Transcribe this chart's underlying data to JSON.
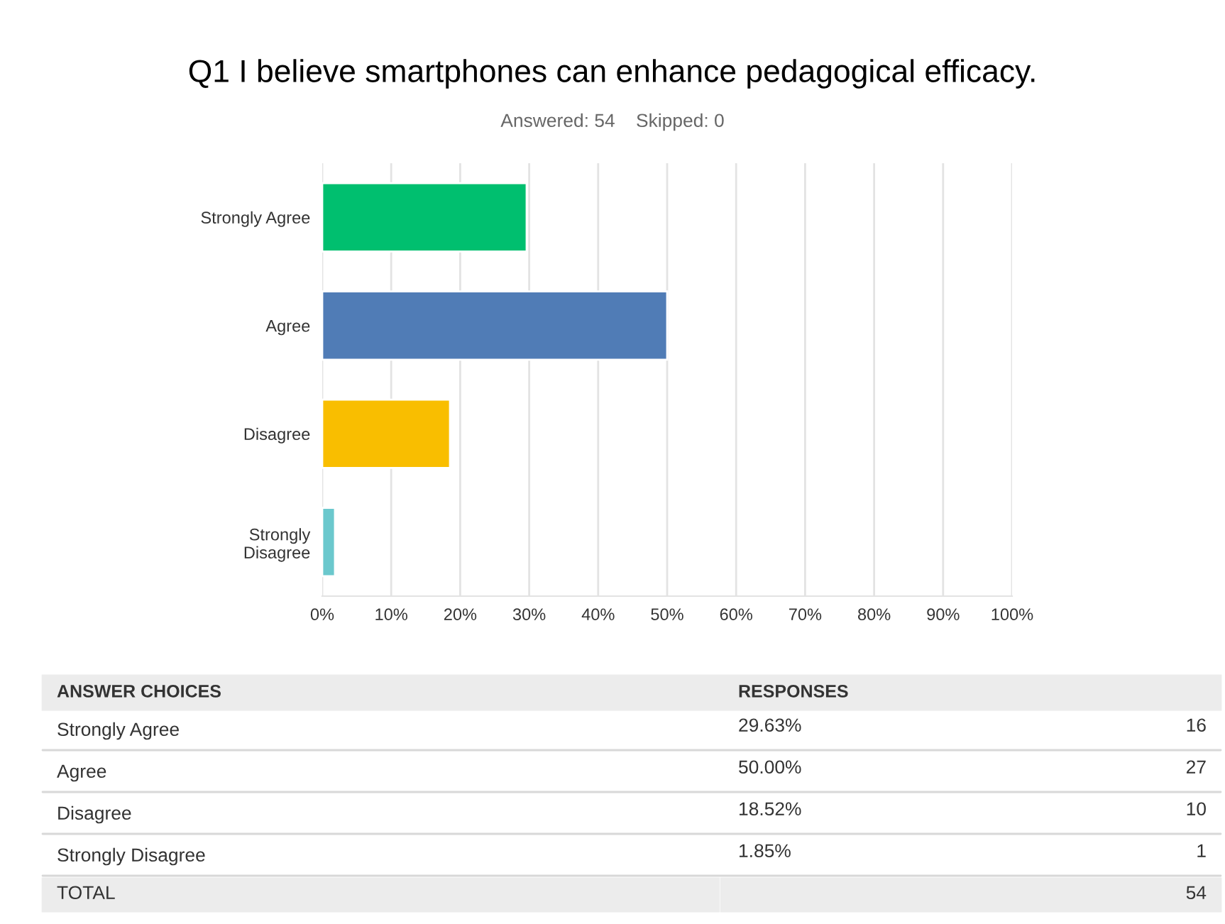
{
  "chart_data": {
    "type": "bar",
    "orientation": "horizontal",
    "title": "Q1 I believe smartphones can enhance pedagogical efficacy.",
    "subtitle": "Answered: 54    Skipped: 0",
    "categories": [
      "Strongly Agree",
      "Agree",
      "Disagree",
      "Strongly Disagree"
    ],
    "values": [
      29.63,
      50.0,
      18.52,
      1.85
    ],
    "colors": [
      "#00bf6f",
      "#507cb6",
      "#f9be00",
      "#6bc8cd"
    ],
    "xlim": [
      0,
      100
    ],
    "xticks": [
      {
        "value": 0,
        "label": "0%"
      },
      {
        "value": 10,
        "label": "10%"
      },
      {
        "value": 20,
        "label": "20%"
      },
      {
        "value": 30,
        "label": "30%"
      },
      {
        "value": 40,
        "label": "40%"
      },
      {
        "value": 50,
        "label": "50%"
      },
      {
        "value": 60,
        "label": "60%"
      },
      {
        "value": 70,
        "label": "70%"
      },
      {
        "value": 80,
        "label": "80%"
      },
      {
        "value": 90,
        "label": "90%"
      },
      {
        "value": 100,
        "label": "100%"
      }
    ],
    "grid": "x",
    "annotations": [
      "ANSWER CHOICES",
      "RESPONSES",
      "29.63%",
      "16",
      "50.00%",
      "27",
      "18.52%",
      "10",
      "1.85%",
      "1",
      "TOTAL",
      "54"
    ]
  }
}
